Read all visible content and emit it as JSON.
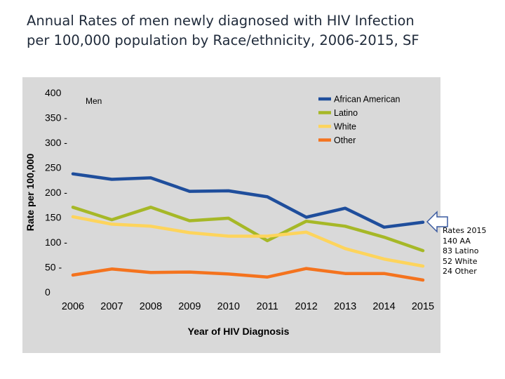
{
  "title": {
    "line1": "Annual Rates of men newly diagnosed with HIV Infection",
    "line2": "per 100,000 population by Race/ethnicity, 2006-2015, SF"
  },
  "annotation": {
    "lines": [
      "Rates 2015",
      "140 AA",
      "83 Latino",
      "52 White",
      "24 Other"
    ]
  },
  "chart_data": {
    "type": "line",
    "subtitle": "Men",
    "xlabel": "Year of HIV Diagnosis",
    "ylabel": "Rate per 100,000",
    "ylim": [
      0,
      400
    ],
    "yticks": [
      0,
      50,
      100,
      150,
      200,
      250,
      300,
      350,
      400
    ],
    "ytick_labels": [
      "0",
      "50  -",
      "100  -",
      "150",
      "200  -",
      "250",
      "300  -",
      "350  -",
      "400"
    ],
    "x": [
      "2006",
      "2007",
      "2008",
      "2009",
      "2010",
      "2011",
      "2012",
      "2013",
      "2014",
      "2015"
    ],
    "grid": false,
    "legend_position": "top-right",
    "series": [
      {
        "name": "African American",
        "color": "#1f4e9c",
        "values": [
          237,
          226,
          229,
          202,
          203,
          191,
          150,
          168,
          130,
          140
        ]
      },
      {
        "name": "Latino",
        "color": "#a6b827",
        "values": [
          170,
          145,
          170,
          143,
          148,
          103,
          142,
          132,
          110,
          83
        ]
      },
      {
        "name": "White",
        "color": "#fdd45c",
        "values": [
          151,
          136,
          132,
          119,
          112,
          112,
          120,
          87,
          66,
          52
        ]
      },
      {
        "name": "Other",
        "color": "#f4731e",
        "values": [
          34,
          46,
          39,
          40,
          36,
          30,
          47,
          37,
          37,
          24
        ]
      }
    ]
  }
}
